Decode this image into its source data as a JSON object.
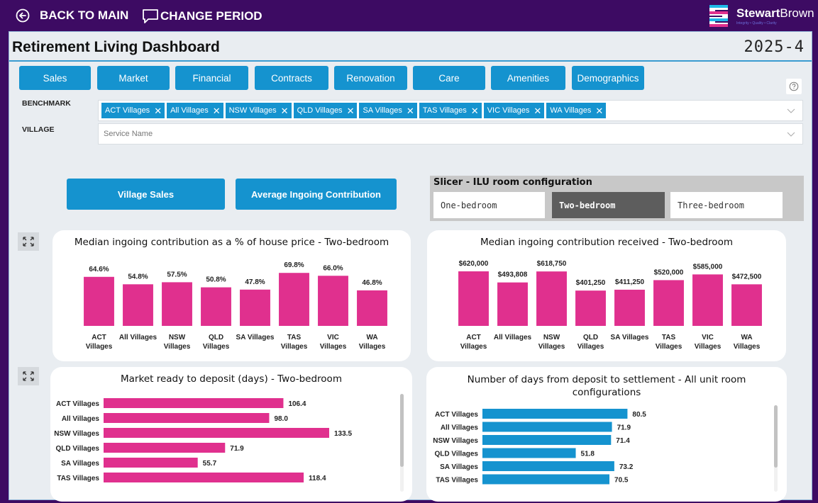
{
  "topbar": {
    "back_label": "BACK TO MAIN",
    "change_period_label": "CHANGE PERIOD",
    "logo_name_bold": "Stewart",
    "logo_name_light": "Brown",
    "logo_tagline": "Integrity • Quality • Clarity"
  },
  "header": {
    "title": "Retirement Living Dashboard",
    "period": "2025-4"
  },
  "nav": {
    "tabs": [
      {
        "label": "Sales"
      },
      {
        "label": "Market"
      },
      {
        "label": "Financial"
      },
      {
        "label": "Contracts"
      },
      {
        "label": "Renovation"
      },
      {
        "label": "Care"
      },
      {
        "label": "Amenities"
      },
      {
        "label": "Demographics"
      }
    ]
  },
  "filters": {
    "benchmark_label": "BENCHMARK",
    "benchmark_selected": [
      "ACT Villages",
      "All Villages",
      "NSW Villages",
      "QLD Villages",
      "SA Villages",
      "TAS Villages",
      "VIC Villages",
      "WA Villages"
    ],
    "village_label": "VILLAGE",
    "village_placeholder": "Service Name"
  },
  "actions": {
    "village_sales_label": "Village Sales",
    "avg_ingoing_label": "Average Ingoing Contribution"
  },
  "slicer": {
    "title": "Slicer - ILU room configuration",
    "options": [
      "One-bedroom",
      "Two-bedroom",
      "Three-bedroom"
    ],
    "selected": "Two-bedroom"
  },
  "colors": {
    "brand_purple": "#3d0b63",
    "accent_blue": "#1593cf",
    "bar_pink": "#e0308e",
    "bar_blue": "#1593cf"
  },
  "chart_data": [
    {
      "type": "bar",
      "title": "Median ingoing contribution as a % of house price - Two-bedroom",
      "categories": [
        "ACT Villages",
        "All Villages",
        "NSW Villages",
        "QLD Villages",
        "SA Villages",
        "TAS Villages",
        "VIC Villages",
        "WA Villages"
      ],
      "values": [
        64.6,
        54.8,
        57.5,
        50.8,
        47.8,
        69.8,
        66.0,
        46.8
      ],
      "labels": [
        "64.6%",
        "54.8%",
        "57.5%",
        "50.8%",
        "47.8%",
        "69.8%",
        "66.0%",
        "46.8%"
      ],
      "unit": "%",
      "xlabel": "",
      "ylabel": "",
      "ylim": [
        0,
        70
      ],
      "grid": false
    },
    {
      "type": "bar",
      "title": "Median ingoing contribution received - Two-bedroom",
      "categories": [
        "ACT Villages",
        "All Villages",
        "NSW Villages",
        "QLD Villages",
        "SA Villages",
        "TAS Villages",
        "VIC Villages",
        "WA Villages"
      ],
      "values": [
        620000,
        493808,
        618750,
        401250,
        411250,
        520000,
        585000,
        472500
      ],
      "labels": [
        "$620,000",
        "$493,808",
        "$618,750",
        "$401,250",
        "$411,250",
        "$520,000",
        "$585,000",
        "$472,500"
      ],
      "unit": "$",
      "xlabel": "",
      "ylabel": "",
      "ylim": [
        0,
        620000
      ],
      "grid": false
    },
    {
      "type": "bar",
      "orientation": "horizontal",
      "title": "Market ready to deposit (days) - Two-bedroom",
      "categories": [
        "ACT Villages",
        "All Villages",
        "NSW Villages",
        "QLD Villages",
        "SA Villages",
        "TAS Villages"
      ],
      "values": [
        106.4,
        98.0,
        133.5,
        71.9,
        55.7,
        118.4
      ],
      "labels": [
        "106.4",
        "98.0",
        "133.5",
        "71.9",
        "55.7",
        "118.4"
      ],
      "unit": "days",
      "xlabel": "",
      "ylabel": "",
      "xlim": [
        0,
        133.5
      ],
      "grid": false
    },
    {
      "type": "bar",
      "orientation": "horizontal",
      "title": "Number of days from deposit to settlement - All unit room configurations",
      "categories": [
        "ACT Villages",
        "All Villages",
        "NSW Villages",
        "QLD Villages",
        "SA Villages",
        "TAS Villages"
      ],
      "values": [
        80.5,
        71.9,
        71.4,
        51.8,
        73.2,
        70.5
      ],
      "labels": [
        "80.5",
        "71.9",
        "71.4",
        "51.8",
        "73.2",
        "70.5"
      ],
      "unit": "days",
      "xlabel": "",
      "ylabel": "",
      "xlim": [
        0,
        133.5
      ],
      "grid": false
    }
  ]
}
